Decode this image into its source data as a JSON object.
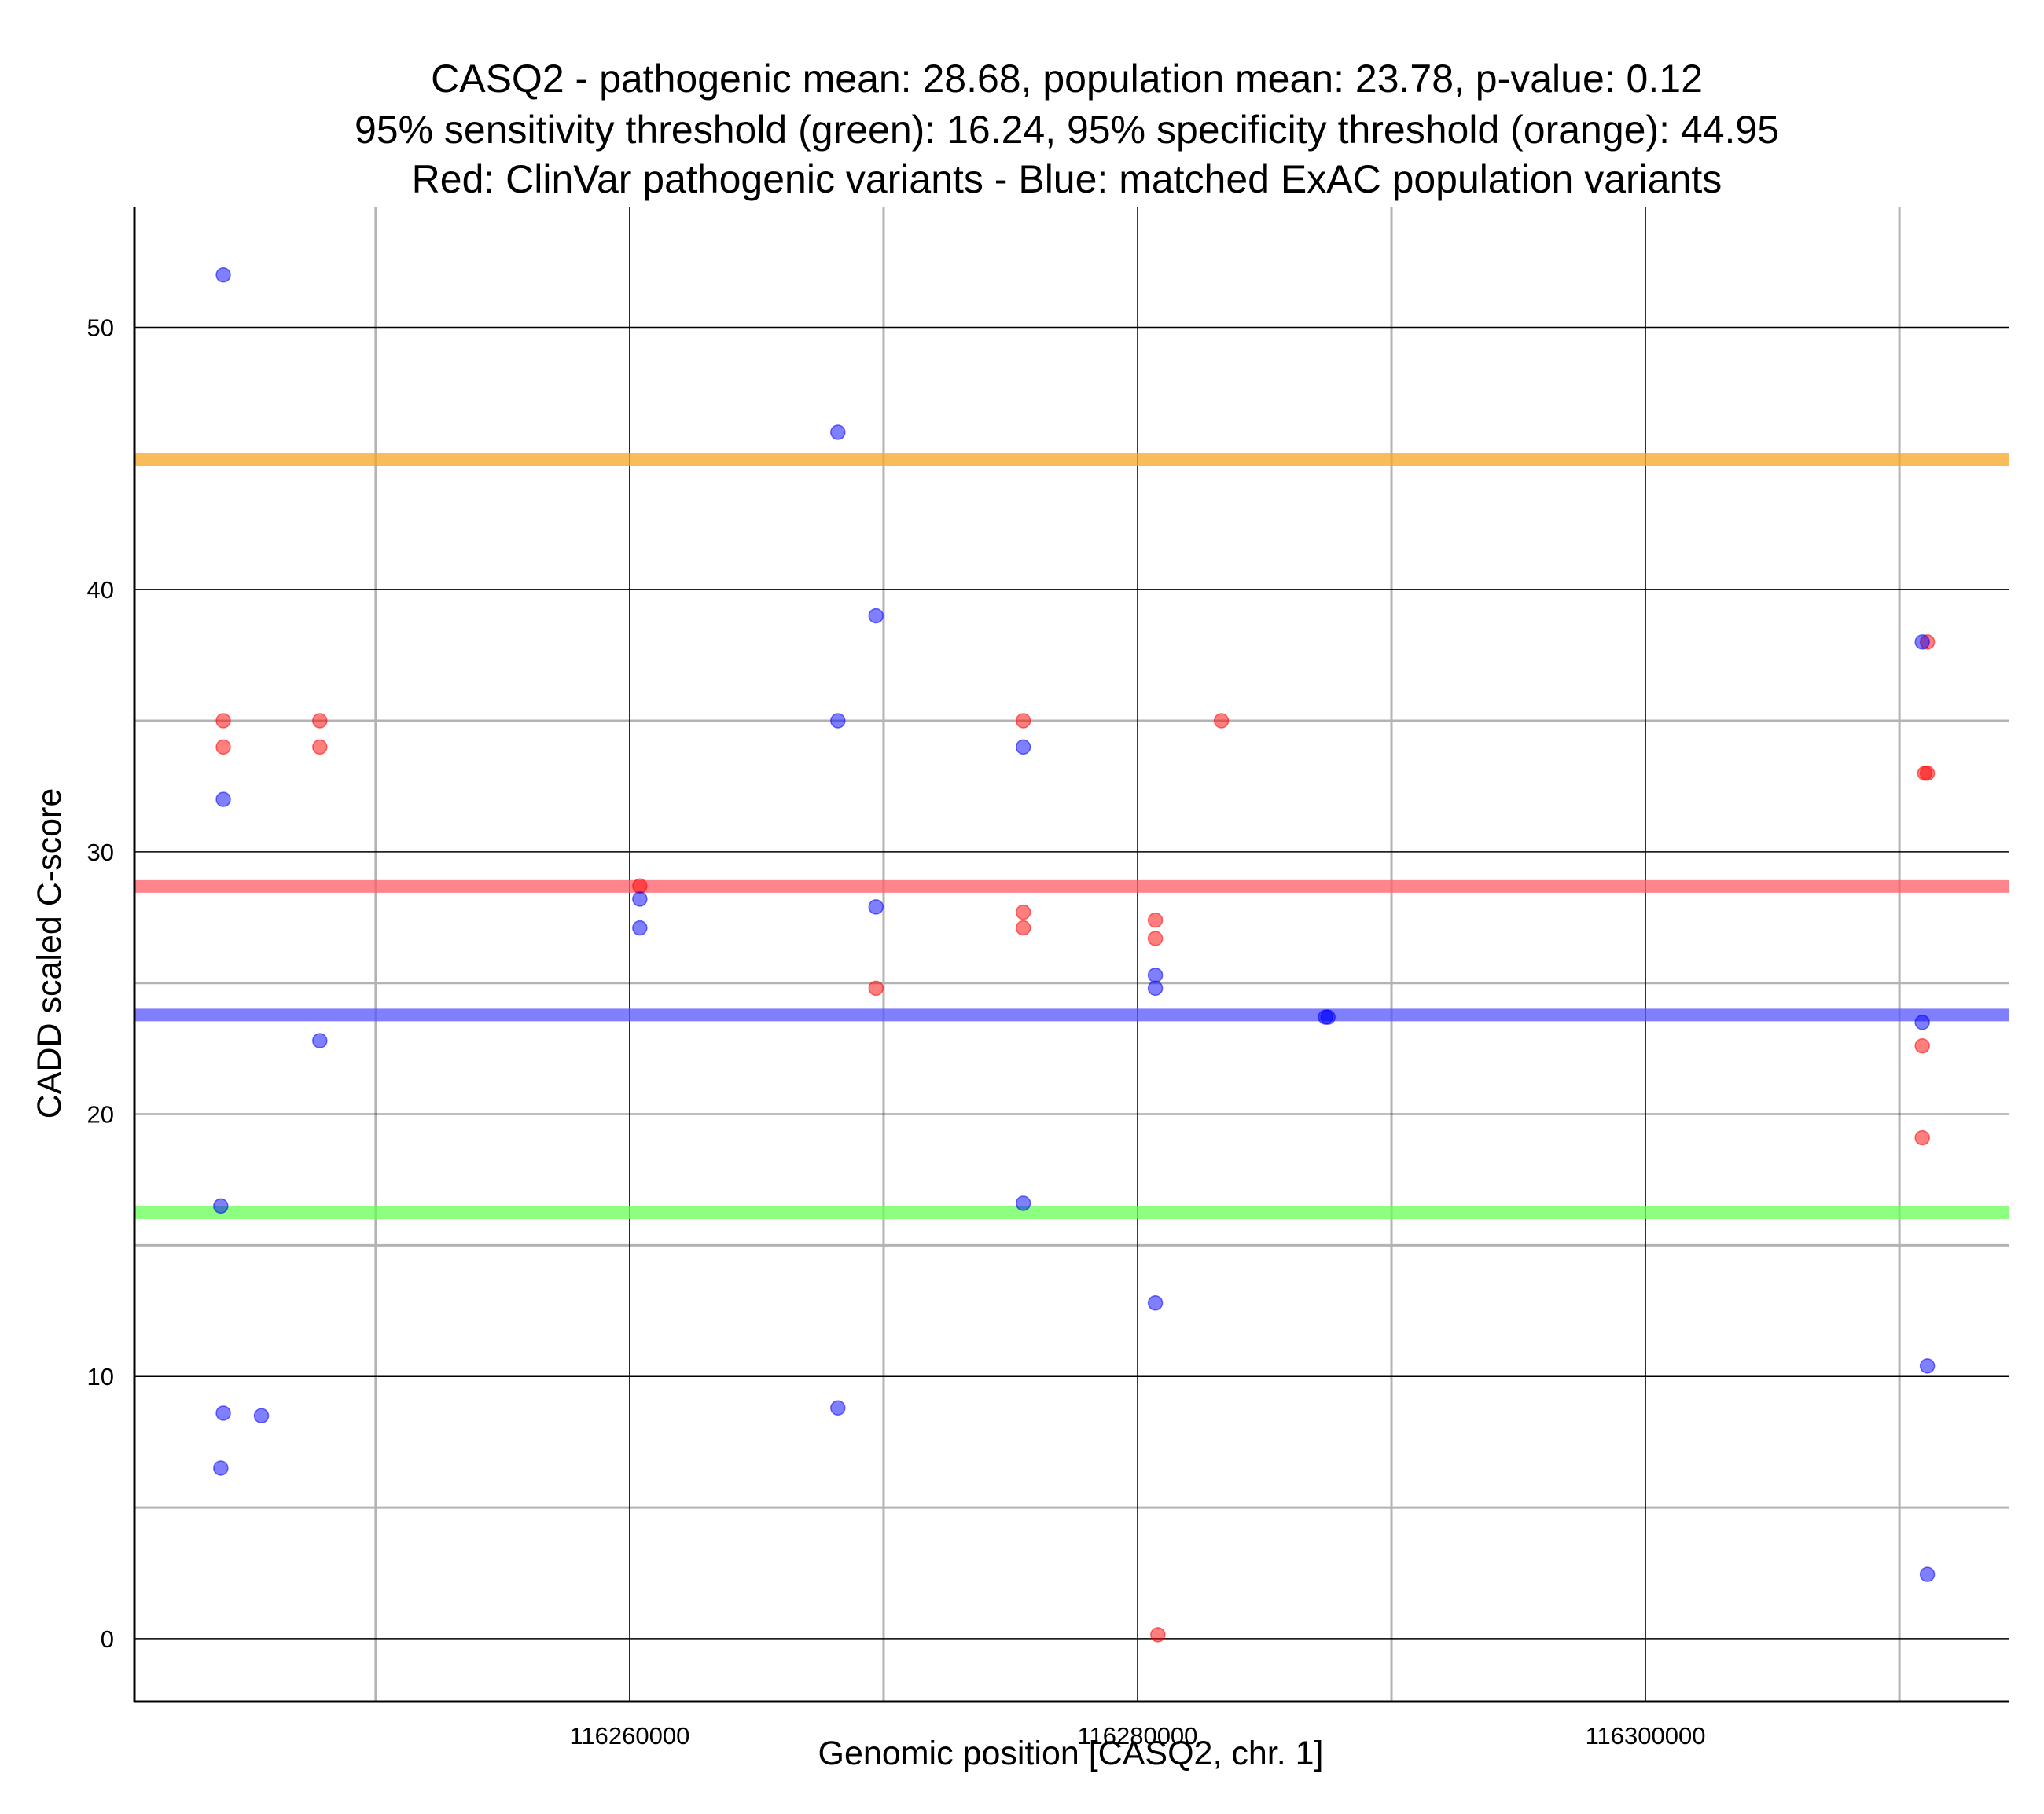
{
  "chart_data": {
    "type": "scatter",
    "title_lines": [
      "CASQ2 - pathogenic mean: 28.68, population mean: 23.78, p-value: 0.12",
      "95% sensitivity threshold (green): 16.24, 95% specificity threshold (orange): 44.95",
      "Red: ClinVar pathogenic variants - Blue: matched ExAC population variants"
    ],
    "xlabel": "Genomic position [CASQ2, chr. 1]",
    "ylabel": "CADD scaled C-score",
    "xlim": [
      116240500,
      116314300
    ],
    "ylim": [
      -2.4,
      54.6
    ],
    "x_major_ticks": [
      116260000,
      116280000,
      116300000
    ],
    "x_minor_grid": [
      116250000,
      116270000,
      116290000,
      116310000
    ],
    "y_major_ticks": [
      0,
      10,
      20,
      30,
      40,
      50
    ],
    "y_minor_grid": [
      5,
      15,
      25,
      35
    ],
    "grid": true,
    "reference_lines": [
      {
        "name": "95% specificity threshold",
        "y": 44.95,
        "color": "#f5a623"
      },
      {
        "name": "pathogenic mean",
        "y": 28.68,
        "color": "#ff5c66"
      },
      {
        "name": "population mean",
        "y": 23.78,
        "color": "#5555ff"
      },
      {
        "name": "95% sensitivity threshold",
        "y": 16.24,
        "color": "#66ff55"
      }
    ],
    "series": [
      {
        "color": "#ff0000",
        "points": [
          {
            "x": 116244000,
            "y": 35
          },
          {
            "x": 116244000,
            "y": 34
          },
          {
            "x": 116247800,
            "y": 35
          },
          {
            "x": 116247800,
            "y": 34
          },
          {
            "x": 116260400,
            "y": 28.7
          },
          {
            "x": 116269700,
            "y": 24.8
          },
          {
            "x": 116275500,
            "y": 35
          },
          {
            "x": 116275500,
            "y": 27.7
          },
          {
            "x": 116275500,
            "y": 27.1
          },
          {
            "x": 116280700,
            "y": 27.4
          },
          {
            "x": 116280700,
            "y": 26.7
          },
          {
            "x": 116280800,
            "y": 0.15
          },
          {
            "x": 116283300,
            "y": 35
          },
          {
            "x": 116311100,
            "y": 38
          },
          {
            "x": 116311100,
            "y": 33
          },
          {
            "x": 116311000,
            "y": 33
          },
          {
            "x": 116310900,
            "y": 22.6
          },
          {
            "x": 116310900,
            "y": 19.1
          }
        ]
      },
      {
        "color": "#0000ff",
        "points": [
          {
            "x": 116244000,
            "y": 52
          },
          {
            "x": 116244000,
            "y": 32
          },
          {
            "x": 116243900,
            "y": 16.5
          },
          {
            "x": 116244000,
            "y": 8.6
          },
          {
            "x": 116245500,
            "y": 8.5
          },
          {
            "x": 116243900,
            "y": 6.5
          },
          {
            "x": 116247800,
            "y": 22.8
          },
          {
            "x": 116260400,
            "y": 28.2
          },
          {
            "x": 116260400,
            "y": 27.1
          },
          {
            "x": 116268200,
            "y": 46
          },
          {
            "x": 116268200,
            "y": 35
          },
          {
            "x": 116268200,
            "y": 8.8
          },
          {
            "x": 116269700,
            "y": 39
          },
          {
            "x": 116269700,
            "y": 27.9
          },
          {
            "x": 116275500,
            "y": 34
          },
          {
            "x": 116275500,
            "y": 16.6
          },
          {
            "x": 116280700,
            "y": 25.3
          },
          {
            "x": 116280700,
            "y": 24.8
          },
          {
            "x": 116280700,
            "y": 12.8
          },
          {
            "x": 116287400,
            "y": 23.7
          },
          {
            "x": 116287500,
            "y": 23.7
          },
          {
            "x": 116310900,
            "y": 38
          },
          {
            "x": 116310900,
            "y": 23.5
          },
          {
            "x": 116311100,
            "y": 10.4
          },
          {
            "x": 116311100,
            "y": 2.45
          }
        ]
      }
    ]
  }
}
